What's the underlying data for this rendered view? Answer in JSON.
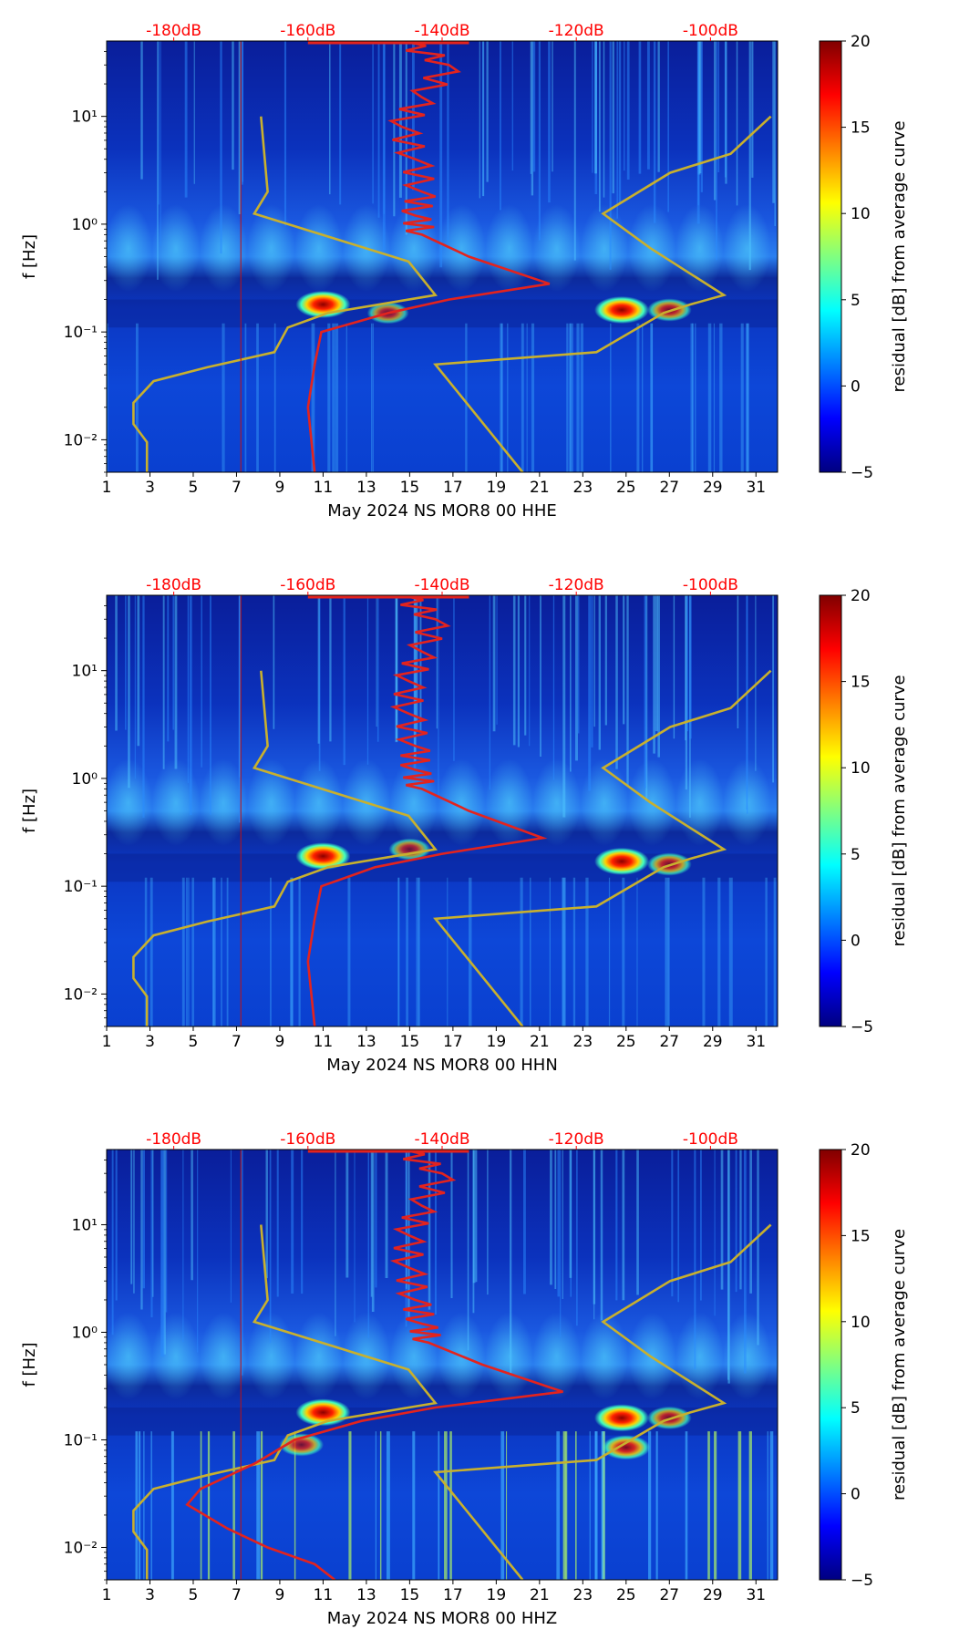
{
  "colorbar": {
    "label": "residual [dB] from average curve",
    "ticks": [
      "20",
      "15",
      "10",
      "5",
      "0",
      "−5"
    ],
    "range": [
      -5,
      20
    ],
    "colors": [
      "#000080",
      "#0000ff",
      "#0080ff",
      "#00ffff",
      "#80ff80",
      "#ffff00",
      "#ff8000",
      "#ff0000",
      "#800000"
    ]
  },
  "style": {
    "noise_model_color": "#c8b02e",
    "psd_curve_color": "#e3231e",
    "db_label_color": "#ff0000",
    "spectrogram_base": "#0a3cc8"
  },
  "chart_data": [
    {
      "type": "spectrogram",
      "channel": "HHE",
      "xlabel": "May 2024 NS MOR8 00 HHE",
      "ylabel": "f [Hz]",
      "x_ticks": [
        "1",
        "3",
        "5",
        "7",
        "9",
        "11",
        "13",
        "15",
        "17",
        "19",
        "21",
        "23",
        "25",
        "27",
        "29",
        "31"
      ],
      "x_range": [
        1,
        32
      ],
      "y_ticks": [
        "10⁻²",
        "10⁻¹",
        "10⁰",
        "10¹"
      ],
      "y_range": [
        0.005,
        50
      ],
      "top_axis_labels": [
        "-180dB",
        "-160dB",
        "-140dB",
        "-120dB",
        "-100dB"
      ],
      "top_axis_range": [
        -190,
        -90
      ],
      "hotspots": [
        {
          "day": 11.0,
          "f": 0.18,
          "level": 20
        },
        {
          "day": 24.8,
          "f": 0.16,
          "level": 20
        },
        {
          "day": 27.0,
          "f": 0.16,
          "level": 12
        },
        {
          "day": 14.0,
          "f": 0.15,
          "level": 10
        }
      ],
      "psd_curve": [
        {
          "f": 50,
          "db": -146
        },
        {
          "f": 30,
          "db": -139
        },
        {
          "f": 15,
          "db": -143
        },
        {
          "f": 8,
          "db": -146
        },
        {
          "f": 4,
          "db": -144
        },
        {
          "f": 2,
          "db": -143
        },
        {
          "f": 1.2,
          "db": -144
        },
        {
          "f": 0.8,
          "db": -143
        },
        {
          "f": 0.5,
          "db": -136
        },
        {
          "f": 0.28,
          "db": -124
        },
        {
          "f": 0.2,
          "db": -139
        },
        {
          "f": 0.15,
          "db": -148
        },
        {
          "f": 0.1,
          "db": -158
        },
        {
          "f": 0.05,
          "db": -159
        },
        {
          "f": 0.02,
          "db": -160
        },
        {
          "f": 0.005,
          "db": -159
        }
      ],
      "noise_models": [
        [
          {
            "f": 10,
            "db": -167
          },
          {
            "f": 2,
            "db": -166
          },
          {
            "f": 1.25,
            "db": -168
          },
          {
            "f": 0.45,
            "db": -145
          },
          {
            "f": 0.22,
            "db": -141
          },
          {
            "f": 0.15,
            "db": -157
          },
          {
            "f": 0.11,
            "db": -163
          },
          {
            "f": 0.065,
            "db": -165
          },
          {
            "f": 0.047,
            "db": -175
          },
          {
            "f": 0.035,
            "db": -183
          },
          {
            "f": 0.022,
            "db": -186
          },
          {
            "f": 0.014,
            "db": -186
          },
          {
            "f": 0.0095,
            "db": -184
          },
          {
            "f": 0.005,
            "db": -184
          }
        ],
        [
          {
            "f": 10,
            "db": -91
          },
          {
            "f": 4.5,
            "db": -97
          },
          {
            "f": 3,
            "db": -106
          },
          {
            "f": 1.25,
            "db": -116
          },
          {
            "f": 0.6,
            "db": -109
          },
          {
            "f": 0.22,
            "db": -98
          },
          {
            "f": 0.18,
            "db": -103
          },
          {
            "f": 0.15,
            "db": -107
          },
          {
            "f": 0.065,
            "db": -117
          },
          {
            "f": 0.05,
            "db": -141
          },
          {
            "f": 0.005,
            "db": -128
          }
        ]
      ]
    },
    {
      "type": "spectrogram",
      "channel": "HHN",
      "xlabel": "May 2024 NS MOR8 00 HHN",
      "ylabel": "f [Hz]",
      "x_ticks": [
        "1",
        "3",
        "5",
        "7",
        "9",
        "11",
        "13",
        "15",
        "17",
        "19",
        "21",
        "23",
        "25",
        "27",
        "29",
        "31"
      ],
      "x_range": [
        1,
        32
      ],
      "y_ticks": [
        "10⁻²",
        "10⁻¹",
        "10⁰",
        "10¹"
      ],
      "y_range": [
        0.005,
        50
      ],
      "top_axis_labels": [
        "-180dB",
        "-160dB",
        "-140dB",
        "-120dB",
        "-100dB"
      ],
      "top_axis_range": [
        -190,
        -90
      ],
      "hotspots": [
        {
          "day": 11.0,
          "f": 0.19,
          "level": 20
        },
        {
          "day": 24.8,
          "f": 0.17,
          "level": 20
        },
        {
          "day": 27.0,
          "f": 0.16,
          "level": 12
        },
        {
          "day": 15.0,
          "f": 0.22,
          "level": 10
        }
      ],
      "psd_curve": [
        {
          "f": 50,
          "db": -146
        },
        {
          "f": 30,
          "db": -141
        },
        {
          "f": 15,
          "db": -143
        },
        {
          "f": 8,
          "db": -145
        },
        {
          "f": 4,
          "db": -145
        },
        {
          "f": 2,
          "db": -144
        },
        {
          "f": 1.2,
          "db": -144
        },
        {
          "f": 0.8,
          "db": -143
        },
        {
          "f": 0.5,
          "db": -136
        },
        {
          "f": 0.28,
          "db": -125
        },
        {
          "f": 0.2,
          "db": -140
        },
        {
          "f": 0.15,
          "db": -150
        },
        {
          "f": 0.1,
          "db": -158
        },
        {
          "f": 0.05,
          "db": -159
        },
        {
          "f": 0.02,
          "db": -160
        },
        {
          "f": 0.005,
          "db": -159
        }
      ],
      "noise_models": [
        [
          {
            "f": 10,
            "db": -167
          },
          {
            "f": 2,
            "db": -166
          },
          {
            "f": 1.25,
            "db": -168
          },
          {
            "f": 0.45,
            "db": -145
          },
          {
            "f": 0.22,
            "db": -141
          },
          {
            "f": 0.15,
            "db": -157
          },
          {
            "f": 0.11,
            "db": -163
          },
          {
            "f": 0.065,
            "db": -165
          },
          {
            "f": 0.047,
            "db": -175
          },
          {
            "f": 0.035,
            "db": -183
          },
          {
            "f": 0.022,
            "db": -186
          },
          {
            "f": 0.014,
            "db": -186
          },
          {
            "f": 0.0095,
            "db": -184
          },
          {
            "f": 0.005,
            "db": -184
          }
        ],
        [
          {
            "f": 10,
            "db": -91
          },
          {
            "f": 4.5,
            "db": -97
          },
          {
            "f": 3,
            "db": -106
          },
          {
            "f": 1.25,
            "db": -116
          },
          {
            "f": 0.6,
            "db": -109
          },
          {
            "f": 0.22,
            "db": -98
          },
          {
            "f": 0.18,
            "db": -103
          },
          {
            "f": 0.15,
            "db": -107
          },
          {
            "f": 0.065,
            "db": -117
          },
          {
            "f": 0.05,
            "db": -141
          },
          {
            "f": 0.005,
            "db": -128
          }
        ]
      ]
    },
    {
      "type": "spectrogram",
      "channel": "HHZ",
      "xlabel": "May 2024 NS MOR8 00 HHZ",
      "ylabel": "f [Hz]",
      "x_ticks": [
        "1",
        "3",
        "5",
        "7",
        "9",
        "11",
        "13",
        "15",
        "17",
        "19",
        "21",
        "23",
        "25",
        "27",
        "29",
        "31"
      ],
      "x_range": [
        1,
        32
      ],
      "y_ticks": [
        "10⁻²",
        "10⁻¹",
        "10⁰",
        "10¹"
      ],
      "y_range": [
        0.005,
        50
      ],
      "top_axis_labels": [
        "-180dB",
        "-160dB",
        "-140dB",
        "-120dB",
        "-100dB"
      ],
      "top_axis_range": [
        -190,
        -90
      ],
      "hotspots": [
        {
          "day": 11.0,
          "f": 0.18,
          "level": 20
        },
        {
          "day": 24.8,
          "f": 0.16,
          "level": 20
        },
        {
          "day": 25.0,
          "f": 0.085,
          "level": 15
        },
        {
          "day": 27.0,
          "f": 0.16,
          "level": 12
        },
        {
          "day": 10.0,
          "f": 0.09,
          "level": 12
        }
      ],
      "psd_curve": [
        {
          "f": 50,
          "db": -146
        },
        {
          "f": 30,
          "db": -140
        },
        {
          "f": 15,
          "db": -143
        },
        {
          "f": 8,
          "db": -145
        },
        {
          "f": 4,
          "db": -145
        },
        {
          "f": 2,
          "db": -144
        },
        {
          "f": 1.2,
          "db": -143
        },
        {
          "f": 0.8,
          "db": -142
        },
        {
          "f": 0.5,
          "db": -134
        },
        {
          "f": 0.28,
          "db": -122
        },
        {
          "f": 0.2,
          "db": -141
        },
        {
          "f": 0.15,
          "db": -152
        },
        {
          "f": 0.1,
          "db": -162
        },
        {
          "f": 0.06,
          "db": -168
        },
        {
          "f": 0.035,
          "db": -176
        },
        {
          "f": 0.025,
          "db": -178
        },
        {
          "f": 0.015,
          "db": -172
        },
        {
          "f": 0.01,
          "db": -166
        },
        {
          "f": 0.007,
          "db": -159
        },
        {
          "f": 0.005,
          "db": -156
        }
      ],
      "noise_models": [
        [
          {
            "f": 10,
            "db": -167
          },
          {
            "f": 2,
            "db": -166
          },
          {
            "f": 1.25,
            "db": -168
          },
          {
            "f": 0.45,
            "db": -145
          },
          {
            "f": 0.22,
            "db": -141
          },
          {
            "f": 0.15,
            "db": -157
          },
          {
            "f": 0.11,
            "db": -163
          },
          {
            "f": 0.065,
            "db": -165
          },
          {
            "f": 0.047,
            "db": -175
          },
          {
            "f": 0.035,
            "db": -183
          },
          {
            "f": 0.022,
            "db": -186
          },
          {
            "f": 0.014,
            "db": -186
          },
          {
            "f": 0.0095,
            "db": -184
          },
          {
            "f": 0.005,
            "db": -184
          }
        ],
        [
          {
            "f": 10,
            "db": -91
          },
          {
            "f": 4.5,
            "db": -97
          },
          {
            "f": 3,
            "db": -106
          },
          {
            "f": 1.25,
            "db": -116
          },
          {
            "f": 0.6,
            "db": -109
          },
          {
            "f": 0.22,
            "db": -98
          },
          {
            "f": 0.18,
            "db": -103
          },
          {
            "f": 0.15,
            "db": -107
          },
          {
            "f": 0.065,
            "db": -117
          },
          {
            "f": 0.05,
            "db": -141
          },
          {
            "f": 0.005,
            "db": -128
          }
        ]
      ]
    }
  ]
}
